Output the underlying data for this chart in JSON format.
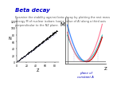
{
  "title": "Beta decay",
  "subtitle": "Examine the stability against beta decay by plotting the rest mass\nenergy M of nuclear isobars (same value of A) along a third axis\nperpendicular to the NZ plane.",
  "title_color": "#0000cc",
  "subtitle_color": "#555555",
  "background_color": "#ffffff",
  "left_panel": {
    "xlabel": "Z",
    "ylabel": "N",
    "nz_color": "#222222",
    "diag_color": "#6666cc"
  },
  "right_panel": {
    "ylabel": "M",
    "xlabel": "Z",
    "bottom_label": "plane of\nconstant A",
    "bottom_label_color": "#0000bb",
    "curve_blue": "#4488ff",
    "curve_cyan": "#00aaaa",
    "curve_red": "#cc0000",
    "curve_pink": "#ff6688",
    "dashed_color": "#aaaadd",
    "axis_color": "#333333"
  }
}
